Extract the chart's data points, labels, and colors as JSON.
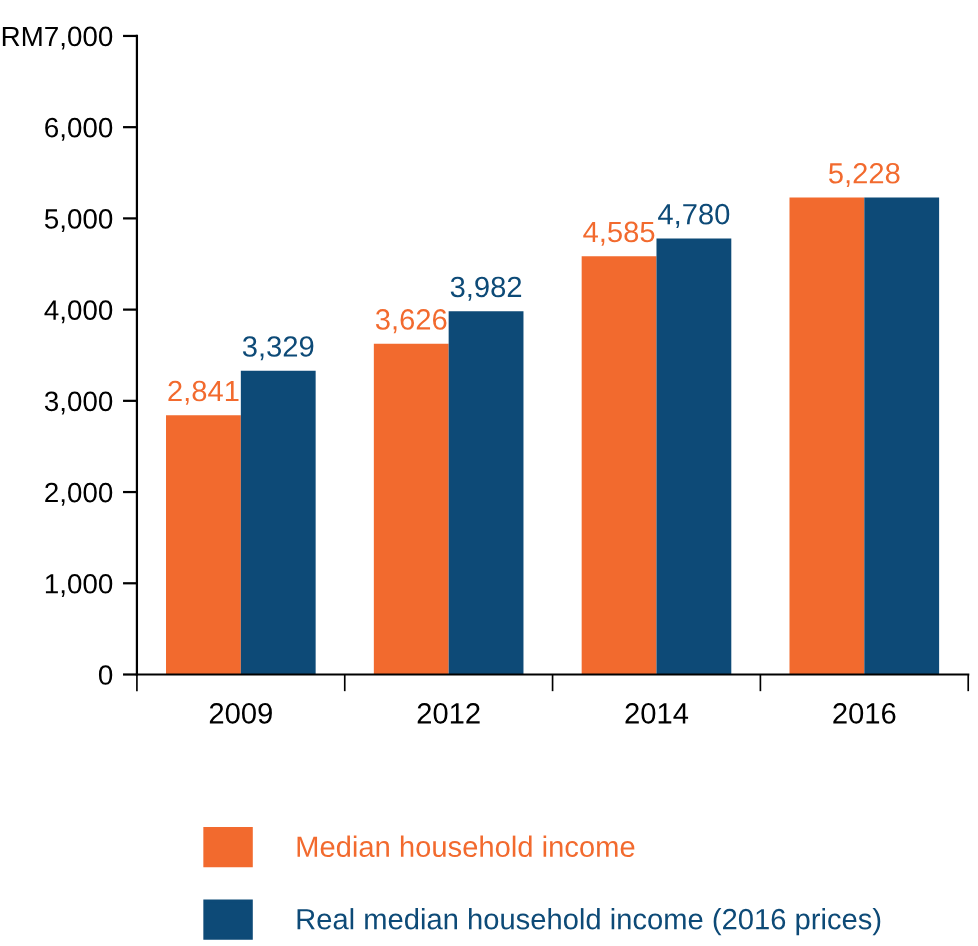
{
  "chart_data": {
    "type": "bar",
    "categories": [
      "2009",
      "2012",
      "2014",
      "2016"
    ],
    "series": [
      {
        "name": "Median household income",
        "color": "#f26a2e",
        "values": [
          2841,
          3626,
          4585,
          5228
        ],
        "value_labels": [
          "2,841",
          "3,626",
          "4,585",
          "5,228"
        ]
      },
      {
        "name": "Real median household income (2016 prices)",
        "color": "#0d4a77",
        "values": [
          3329,
          3982,
          4780,
          5228
        ],
        "value_labels": [
          "3,329",
          "3,982",
          "4,780",
          null
        ]
      }
    ],
    "ylim": [
      0,
      7000
    ],
    "yticks": [
      {
        "value": 0,
        "label": "0"
      },
      {
        "value": 1000,
        "label": "1,000"
      },
      {
        "value": 2000,
        "label": "2,000"
      },
      {
        "value": 3000,
        "label": "3,000"
      },
      {
        "value": 4000,
        "label": "4,000"
      },
      {
        "value": 5000,
        "label": "5,000"
      },
      {
        "value": 6000,
        "label": "6,000"
      },
      {
        "value": 7000,
        "label": "RM7,000"
      }
    ],
    "grid": false,
    "legend": "bottom"
  }
}
